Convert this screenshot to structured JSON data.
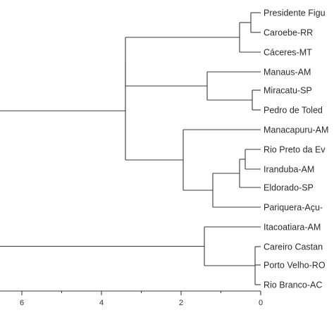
{
  "dendrogram": {
    "leaves": [
      "Presidente Figu",
      "Caroebe-RR",
      "Cáceres-MT",
      "Manaus-AM",
      "Miracatu-SP",
      "Pedro de Toled",
      "Manacapuru-AM",
      "Rio Preto da Ev",
      "Iranduba-AM",
      "Eldorado-SP",
      "Pariquera-Açu-",
      "Itacoatiara-AM",
      "Careiro Castan",
      "Porto Velho-RO",
      "Rio Branco-AC"
    ],
    "axis": {
      "ticks": [
        6,
        4,
        2,
        0
      ],
      "min": 0,
      "reversed": true
    }
  }
}
